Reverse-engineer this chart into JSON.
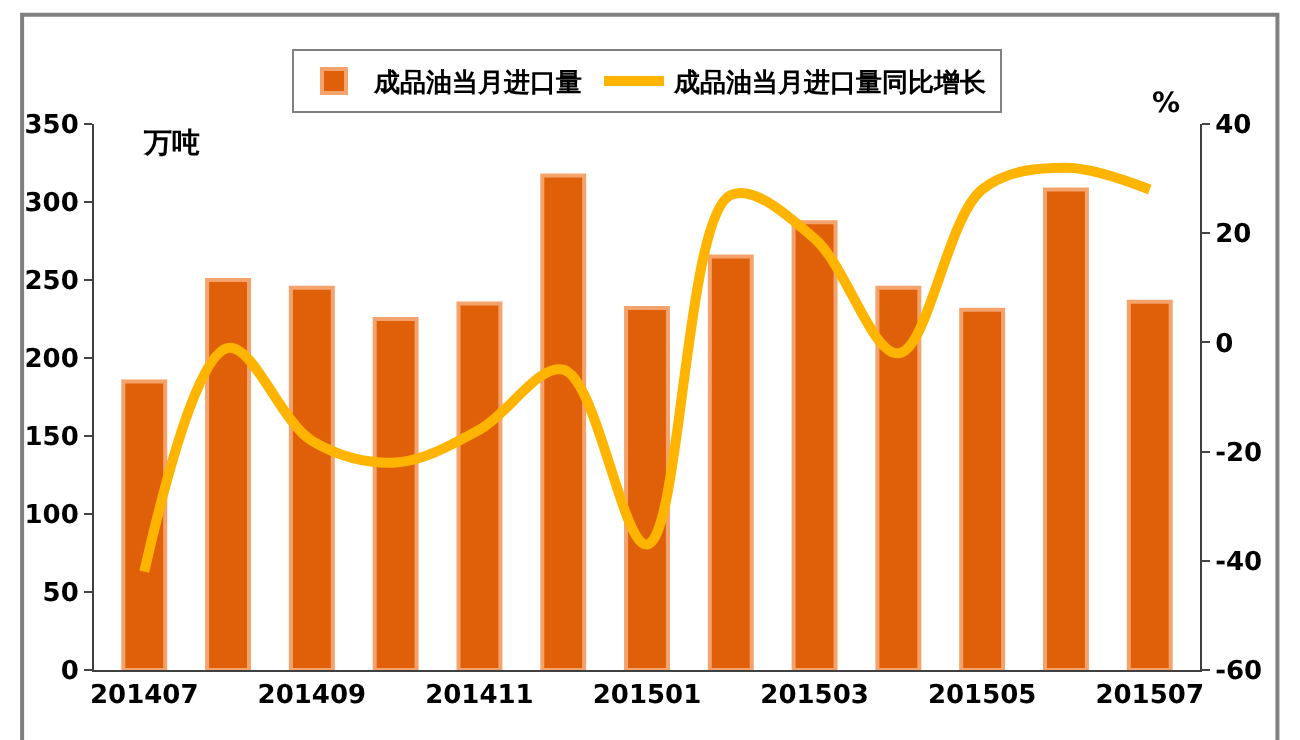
{
  "chart_data": {
    "type": "bar",
    "categories": [
      "201407",
      null,
      "201409",
      null,
      "201411",
      null,
      "201501",
      null,
      "201503",
      null,
      "201505",
      null,
      "201507"
    ],
    "series": [
      {
        "name": "成品油当月进口量",
        "color": "#e0600a",
        "values": [
          185,
          250,
          245,
          225,
          235,
          317,
          232,
          265,
          287,
          245,
          231,
          308,
          236
        ]
      },
      {
        "name": "成品油当月进口量同比增长",
        "type": "line",
        "axis": "y2",
        "color": "#ffb400",
        "values": [
          -42,
          -1,
          -18,
          -22,
          -16,
          -5,
          -37,
          27,
          19,
          -2,
          28,
          32,
          28
        ]
      }
    ],
    "ylabel": "万吨",
    "y2label": "%",
    "ylim": [
      0,
      350
    ],
    "yticks": [
      0,
      50,
      100,
      150,
      200,
      250,
      300,
      350
    ],
    "y2lim": [
      -60,
      40
    ],
    "y2ticks": [
      -60,
      -40,
      -20,
      0,
      20,
      40
    ],
    "legend": "top",
    "marker": "none",
    "line_style": "solid"
  }
}
